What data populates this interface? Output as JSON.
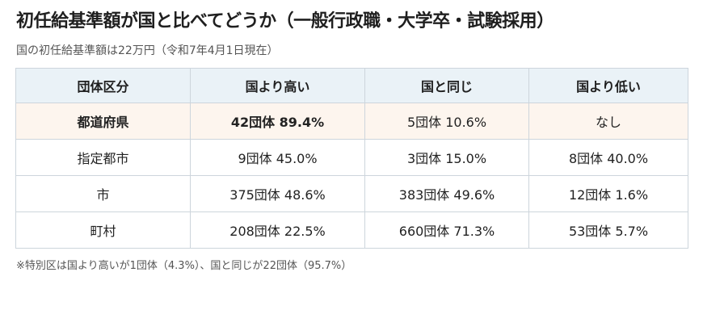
{
  "title": "初任給基準額が国と比べてどうか（一般行政職・大学卒・試験採用）",
  "subtitle": "国の初任給基準額は22万円（令和7年4月1日現在）",
  "table": {
    "headers": [
      "団体区分",
      "国より高い",
      "国と同じ",
      "国より低い"
    ],
    "rows": [
      [
        "都道府県",
        "42団体 89.4%",
        "5団体 10.6%",
        "なし"
      ],
      [
        "指定都市",
        "9団体 45.0%",
        "3団体 15.0%",
        "8団体 40.0%"
      ],
      [
        "市",
        "375団体 48.6%",
        "383団体 49.6%",
        "12団体 1.6%"
      ],
      [
        "町村",
        "208団体 22.5%",
        "660団体 71.3%",
        "53団体 5.7%"
      ]
    ]
  },
  "footnote": "※特別区は国より高いが1団体（4.3%）、国と同じが22団体（95.7%）",
  "colors": {
    "accent": "#c0571e",
    "header_bg": "#eaf2f7",
    "border": "#cdd5dc"
  }
}
